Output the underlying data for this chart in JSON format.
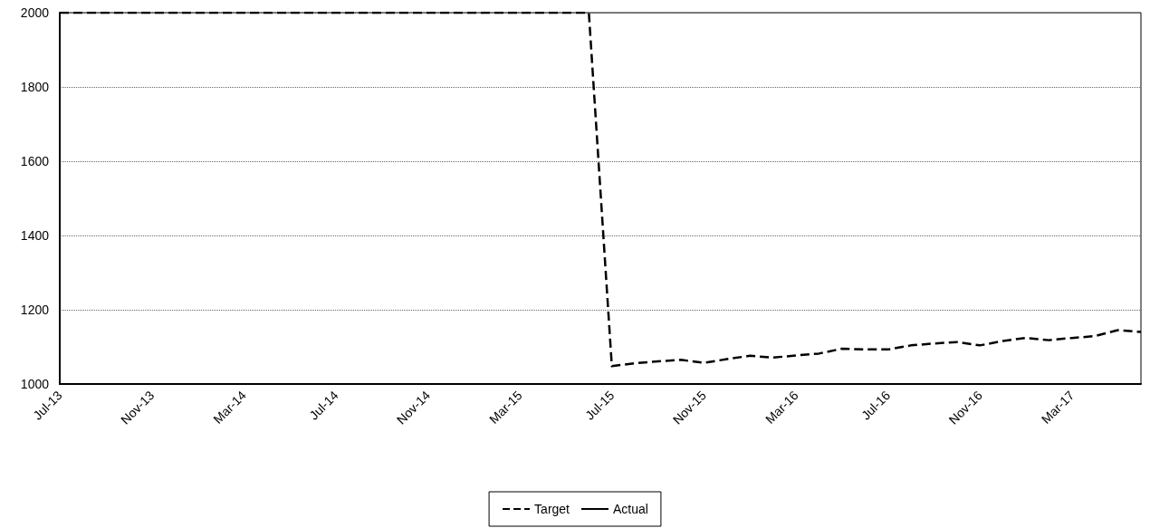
{
  "chart_data": {
    "type": "line",
    "categories": [
      "Jul-13",
      null,
      null,
      null,
      "Nov-13",
      null,
      null,
      null,
      "Mar-14",
      null,
      null,
      null,
      "Jul-14",
      null,
      null,
      null,
      "Nov-14",
      null,
      null,
      null,
      "Mar-15",
      null,
      null,
      null,
      "Jul-15",
      null,
      null,
      null,
      "Nov-15",
      null,
      null,
      null,
      "Mar-16",
      null,
      null,
      null,
      "Jul-16",
      null,
      null,
      null,
      "Nov-16",
      null,
      null,
      null,
      "Mar-17",
      null,
      null,
      null
    ],
    "series": [
      {
        "name": "Target",
        "color": "#000000",
        "line_style": "dashed",
        "values": [
          2000,
          2000,
          2000,
          2000,
          2000,
          2000,
          2000,
          2000,
          2000,
          2000,
          2000,
          2000,
          2000,
          2000,
          2000,
          2000,
          2000,
          2000,
          2000,
          2000,
          2000,
          2000,
          2000,
          2000,
          1048,
          1056,
          1061,
          1065,
          1057,
          1067,
          1076,
          1071,
          1077,
          1082,
          1095,
          1093,
          1093,
          1104,
          1109,
          1113,
          1104,
          1116,
          1124,
          1118,
          1124,
          1129,
          1145,
          1140
        ]
      },
      {
        "name": "Actual",
        "color": "#000000",
        "line_style": "solid",
        "values": [
          null,
          null,
          null,
          null,
          null,
          null,
          null,
          null,
          null,
          null,
          null,
          null,
          null,
          null,
          null,
          null,
          null,
          null,
          null,
          null,
          null,
          null,
          null,
          null,
          null,
          null,
          null,
          null,
          null,
          null,
          null,
          null,
          null,
          null,
          null,
          null,
          null,
          null,
          null,
          null,
          null,
          null,
          null,
          null,
          null,
          null,
          null,
          null
        ]
      }
    ],
    "ylim": [
      1000,
      2000
    ],
    "yticks": [
      1000,
      1200,
      1400,
      1600,
      1800,
      2000
    ],
    "grid": "y",
    "legend": "bottom",
    "marker": "none"
  }
}
